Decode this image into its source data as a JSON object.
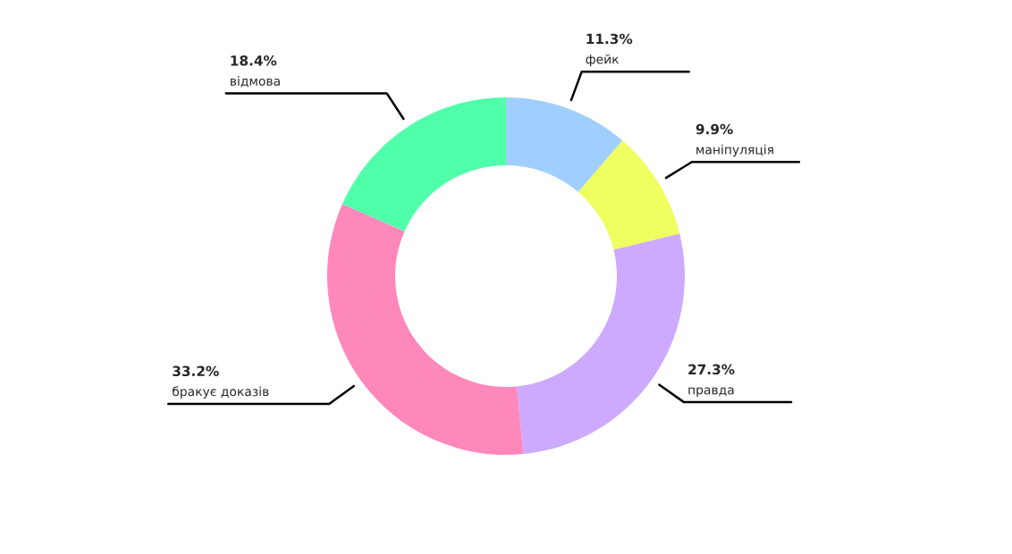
{
  "chart_data": {
    "type": "donut",
    "categories": [
      "фейк",
      "маніпуляція",
      "правда",
      "бракує доказів",
      "відмова"
    ],
    "values": [
      11.3,
      9.9,
      27.3,
      33.2,
      18.4
    ],
    "value_labels": [
      "11.3%",
      "9.9%",
      "27.3%",
      "33.2%",
      "18.4%"
    ],
    "colors": [
      "#a0cfff",
      "#f0ff60",
      "#cdaaff",
      "#ff88bb",
      "#50ffaa"
    ],
    "legend": false
  }
}
